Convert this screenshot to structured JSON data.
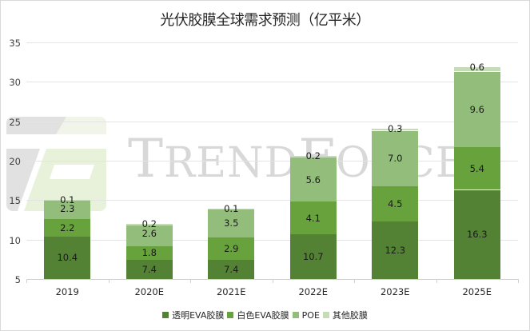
{
  "chart_data": {
    "type": "bar",
    "stacked": true,
    "title": "光伏胶膜全球需求预测（亿平米）",
    "xlabel": "",
    "ylabel": "",
    "ylim": [
      5,
      35
    ],
    "yticks": [
      35,
      30,
      25,
      20,
      15,
      10,
      5
    ],
    "grid": true,
    "legend_position": "bottom",
    "categories": [
      "2019",
      "2020E",
      "2021E",
      "2022E",
      "2023E",
      "2025E"
    ],
    "series": [
      {
        "name": "透明EVA胶膜",
        "color": "#548235",
        "values": [
          10.4,
          7.4,
          7.4,
          10.7,
          12.3,
          16.3
        ]
      },
      {
        "name": "白色EVA胶膜",
        "color": "#68a23c",
        "values": [
          2.2,
          1.8,
          2.9,
          4.1,
          4.5,
          5.4
        ]
      },
      {
        "name": "POE",
        "color": "#93bd7a",
        "values": [
          2.3,
          2.6,
          3.5,
          5.6,
          7.0,
          9.6
        ]
      },
      {
        "name": "其他胶膜",
        "color": "#c6dbb8",
        "values": [
          0.1,
          0.2,
          0.1,
          0.2,
          0.3,
          0.6
        ]
      }
    ],
    "data_labels": [
      [
        "10.4",
        "2.2",
        "2.3",
        "0.1"
      ],
      [
        "7.4",
        "1.8",
        "2.6",
        "0.2"
      ],
      [
        "7.4",
        "2.9",
        "3.5",
        "0.1"
      ],
      [
        "10.7",
        "4.1",
        "5.6",
        "0.2"
      ],
      [
        "12.3",
        "4.5",
        "7.0",
        "0.3"
      ],
      [
        "16.3",
        "5.4",
        "9.6",
        "0.6"
      ]
    ]
  },
  "watermark": {
    "text_first": "T",
    "text_rest1": "REND",
    "text_mid": "F",
    "text_rest2": "ORCE"
  }
}
